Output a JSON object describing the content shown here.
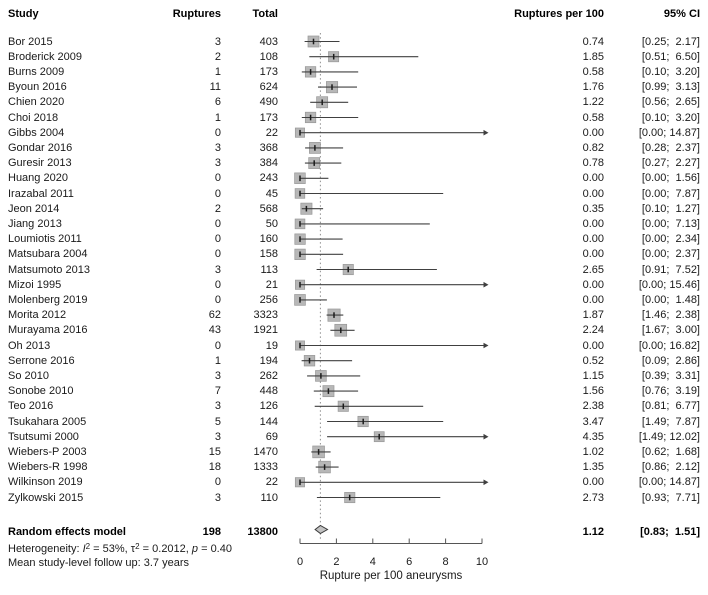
{
  "headers": {
    "study": "Study",
    "ruptures": "Ruptures",
    "total": "Total",
    "rate": "Ruptures per 100",
    "ci": "95% CI"
  },
  "footnotes": {
    "heterogeneity": [
      {
        "text": "Heterogeneity: ",
        "italic": false
      },
      {
        "text": "I",
        "italic": true
      },
      {
        "text": "2",
        "sup": true
      },
      {
        "text": " = 53%, ",
        "italic": false
      },
      {
        "text": "τ",
        "italic": false
      },
      {
        "text": "2",
        "sup": true
      },
      {
        "text": " = 0.2012, ",
        "italic": false
      },
      {
        "text": "p",
        "italic": true
      },
      {
        "text": " = 0.40",
        "italic": false
      }
    ],
    "followup": "Mean study-level follow up: 3.7 years"
  },
  "colors": {
    "square_fill": "#b7b7b7",
    "square_border": "#979797",
    "ci_line": "#404040",
    "estimate_tick": "#1c1c1c",
    "dotted_line": "#8f8f8f",
    "diamond_fill": "#c2c2c2",
    "diamond_border": "#3a3a3a",
    "axis": "#555555"
  },
  "chart_data": {
    "type": "forest",
    "xlabel": "Rupture per 100 aneurysms",
    "xlim": [
      0,
      10
    ],
    "xticks": [
      0,
      2,
      4,
      6,
      8,
      10
    ],
    "pooled_line_x": 1.12,
    "studies": [
      {
        "study": "Bor 2015",
        "ruptures": 3,
        "total": 403,
        "rate": 0.74,
        "lo": 0.25,
        "hi": 2.17,
        "rate_str": "0.74",
        "ci_str": "[0.25;  2.17]"
      },
      {
        "study": "Broderick 2009",
        "ruptures": 2,
        "total": 108,
        "rate": 1.85,
        "lo": 0.51,
        "hi": 6.5,
        "rate_str": "1.85",
        "ci_str": "[0.51;  6.50]"
      },
      {
        "study": "Burns 2009",
        "ruptures": 1,
        "total": 173,
        "rate": 0.58,
        "lo": 0.1,
        "hi": 3.2,
        "rate_str": "0.58",
        "ci_str": "[0.10;  3.20]"
      },
      {
        "study": "Byoun 2016",
        "ruptures": 11,
        "total": 624,
        "rate": 1.76,
        "lo": 0.99,
        "hi": 3.13,
        "rate_str": "1.76",
        "ci_str": "[0.99;  3.13]"
      },
      {
        "study": "Chien 2020",
        "ruptures": 6,
        "total": 490,
        "rate": 1.22,
        "lo": 0.56,
        "hi": 2.65,
        "rate_str": "1.22",
        "ci_str": "[0.56;  2.65]"
      },
      {
        "study": "Choi 2018",
        "ruptures": 1,
        "total": 173,
        "rate": 0.58,
        "lo": 0.1,
        "hi": 3.2,
        "rate_str": "0.58",
        "ci_str": "[0.10;  3.20]"
      },
      {
        "study": "Gibbs 2004",
        "ruptures": 0,
        "total": 22,
        "rate": 0.0,
        "lo": 0.0,
        "hi": 14.87,
        "rate_str": "0.00",
        "ci_str": "[0.00; 14.87]"
      },
      {
        "study": "Gondar 2016",
        "ruptures": 3,
        "total": 368,
        "rate": 0.82,
        "lo": 0.28,
        "hi": 2.37,
        "rate_str": "0.82",
        "ci_str": "[0.28;  2.37]"
      },
      {
        "study": "Guresir 2013",
        "ruptures": 3,
        "total": 384,
        "rate": 0.78,
        "lo": 0.27,
        "hi": 2.27,
        "rate_str": "0.78",
        "ci_str": "[0.27;  2.27]"
      },
      {
        "study": "Huang 2020",
        "ruptures": 0,
        "total": 243,
        "rate": 0.0,
        "lo": 0.0,
        "hi": 1.56,
        "rate_str": "0.00",
        "ci_str": "[0.00;  1.56]"
      },
      {
        "study": "Irazabal 2011",
        "ruptures": 0,
        "total": 45,
        "rate": 0.0,
        "lo": 0.0,
        "hi": 7.87,
        "rate_str": "0.00",
        "ci_str": "[0.00;  7.87]"
      },
      {
        "study": "Jeon 2014",
        "ruptures": 2,
        "total": 568,
        "rate": 0.35,
        "lo": 0.1,
        "hi": 1.27,
        "rate_str": "0.35",
        "ci_str": "[0.10;  1.27]"
      },
      {
        "study": "Jiang 2013",
        "ruptures": 0,
        "total": 50,
        "rate": 0.0,
        "lo": 0.0,
        "hi": 7.13,
        "rate_str": "0.00",
        "ci_str": "[0.00;  7.13]"
      },
      {
        "study": "Loumiotis 2011",
        "ruptures": 0,
        "total": 160,
        "rate": 0.0,
        "lo": 0.0,
        "hi": 2.34,
        "rate_str": "0.00",
        "ci_str": "[0.00;  2.34]"
      },
      {
        "study": "Matsubara 2004",
        "ruptures": 0,
        "total": 158,
        "rate": 0.0,
        "lo": 0.0,
        "hi": 2.37,
        "rate_str": "0.00",
        "ci_str": "[0.00;  2.37]"
      },
      {
        "study": "Matsumoto 2013",
        "ruptures": 3,
        "total": 113,
        "rate": 2.65,
        "lo": 0.91,
        "hi": 7.52,
        "rate_str": "2.65",
        "ci_str": "[0.91;  7.52]"
      },
      {
        "study": "Mizoi 1995",
        "ruptures": 0,
        "total": 21,
        "rate": 0.0,
        "lo": 0.0,
        "hi": 15.46,
        "rate_str": "0.00",
        "ci_str": "[0.00; 15.46]"
      },
      {
        "study": "Molenberg 2019",
        "ruptures": 0,
        "total": 256,
        "rate": 0.0,
        "lo": 0.0,
        "hi": 1.48,
        "rate_str": "0.00",
        "ci_str": "[0.00;  1.48]"
      },
      {
        "study": "Morita 2012",
        "ruptures": 62,
        "total": 3323,
        "rate": 1.87,
        "lo": 1.46,
        "hi": 2.38,
        "rate_str": "1.87",
        "ci_str": "[1.46;  2.38]"
      },
      {
        "study": "Murayama 2016",
        "ruptures": 43,
        "total": 1921,
        "rate": 2.24,
        "lo": 1.67,
        "hi": 3.0,
        "rate_str": "2.24",
        "ci_str": "[1.67;  3.00]"
      },
      {
        "study": "Oh 2013",
        "ruptures": 0,
        "total": 19,
        "rate": 0.0,
        "lo": 0.0,
        "hi": 16.82,
        "rate_str": "0.00",
        "ci_str": "[0.00; 16.82]"
      },
      {
        "study": "Serrone 2016",
        "ruptures": 1,
        "total": 194,
        "rate": 0.52,
        "lo": 0.09,
        "hi": 2.86,
        "rate_str": "0.52",
        "ci_str": "[0.09;  2.86]"
      },
      {
        "study": "So 2010",
        "ruptures": 3,
        "total": 262,
        "rate": 1.15,
        "lo": 0.39,
        "hi": 3.31,
        "rate_str": "1.15",
        "ci_str": "[0.39;  3.31]"
      },
      {
        "study": "Sonobe 2010",
        "ruptures": 7,
        "total": 448,
        "rate": 1.56,
        "lo": 0.76,
        "hi": 3.19,
        "rate_str": "1.56",
        "ci_str": "[0.76;  3.19]"
      },
      {
        "study": "Teo 2016",
        "ruptures": 3,
        "total": 126,
        "rate": 2.38,
        "lo": 0.81,
        "hi": 6.77,
        "rate_str": "2.38",
        "ci_str": "[0.81;  6.77]"
      },
      {
        "study": "Tsukahara 2005",
        "ruptures": 5,
        "total": 144,
        "rate": 3.47,
        "lo": 1.49,
        "hi": 7.87,
        "rate_str": "3.47",
        "ci_str": "[1.49;  7.87]"
      },
      {
        "study": "Tsutsumi 2000",
        "ruptures": 3,
        "total": 69,
        "rate": 4.35,
        "lo": 1.49,
        "hi": 12.02,
        "rate_str": "4.35",
        "ci_str": "[1.49; 12.02]"
      },
      {
        "study": "Wiebers-P 2003",
        "ruptures": 15,
        "total": 1470,
        "rate": 1.02,
        "lo": 0.62,
        "hi": 1.68,
        "rate_str": "1.02",
        "ci_str": "[0.62;  1.68]"
      },
      {
        "study": "Wiebers-R 1998",
        "ruptures": 18,
        "total": 1333,
        "rate": 1.35,
        "lo": 0.86,
        "hi": 2.12,
        "rate_str": "1.35",
        "ci_str": "[0.86;  2.12]"
      },
      {
        "study": "Wilkinson 2019",
        "ruptures": 0,
        "total": 22,
        "rate": 0.0,
        "lo": 0.0,
        "hi": 14.87,
        "rate_str": "0.00",
        "ci_str": "[0.00; 14.87]"
      },
      {
        "study": "Zylkowski 2015",
        "ruptures": 3,
        "total": 110,
        "rate": 2.73,
        "lo": 0.93,
        "hi": 7.71,
        "rate_str": "2.73",
        "ci_str": "[0.93;  7.71]"
      }
    ],
    "summary": {
      "label": "Random effects model",
      "ruptures": "198",
      "total": "13800",
      "rate": 1.12,
      "lo": 0.83,
      "hi": 1.51,
      "rate_str": "1.12",
      "ci_str": "[0.83;  1.51]"
    }
  }
}
